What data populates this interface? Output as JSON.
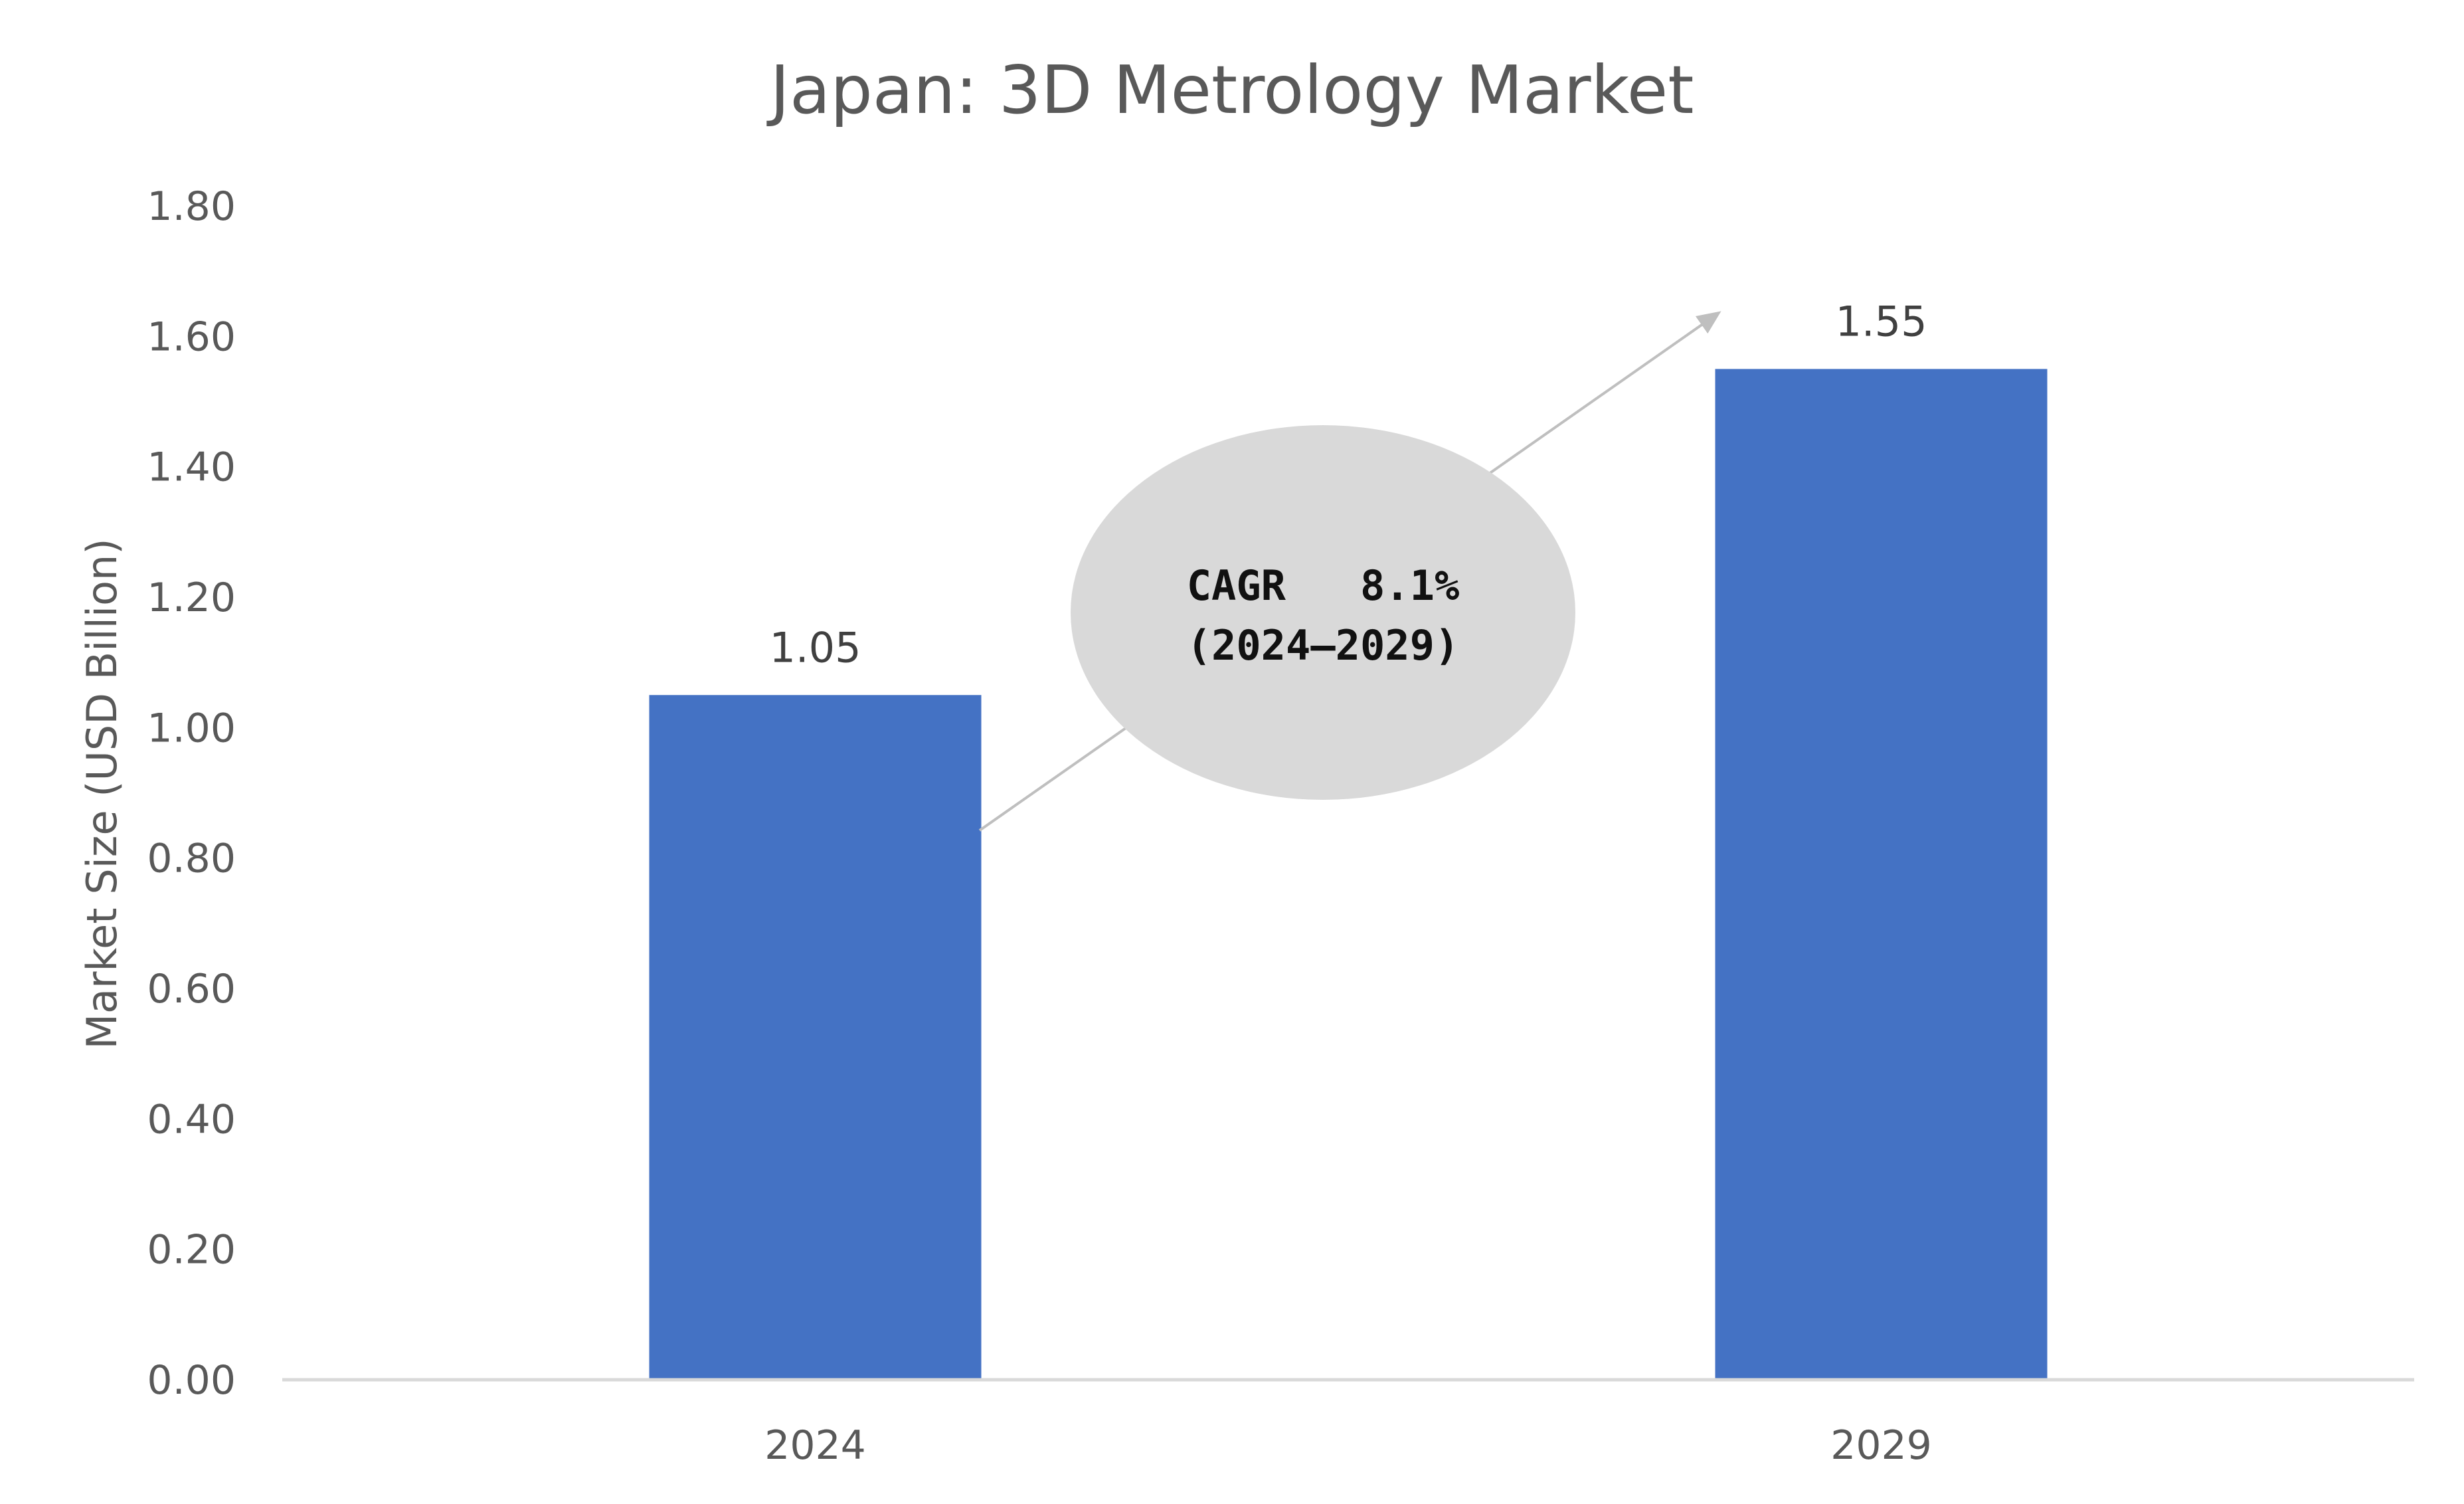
{
  "chart_data": {
    "type": "bar",
    "title": "Japan: 3D Metrology Market",
    "xlabel": "",
    "ylabel": "Market Size (USD Billion)",
    "categories": [
      "2024",
      "2029"
    ],
    "values": [
      1.05,
      1.55
    ],
    "data_labels": [
      "1.05",
      "1.55"
    ],
    "ylim": [
      0,
      1.8
    ],
    "yticks": [
      "0.00",
      "0.20",
      "0.40",
      "0.60",
      "0.80",
      "1.00",
      "1.20",
      "1.40",
      "1.60",
      "1.80"
    ],
    "grid": false,
    "legend": "none",
    "bar_color": "#4472C4",
    "annotation": {
      "shape": "ellipse",
      "line1": "CAGR   8.1%",
      "line2": "(2024–2029)",
      "fill_color": "#D9D9D9",
      "arrow_color": "#BFBFBF"
    }
  }
}
